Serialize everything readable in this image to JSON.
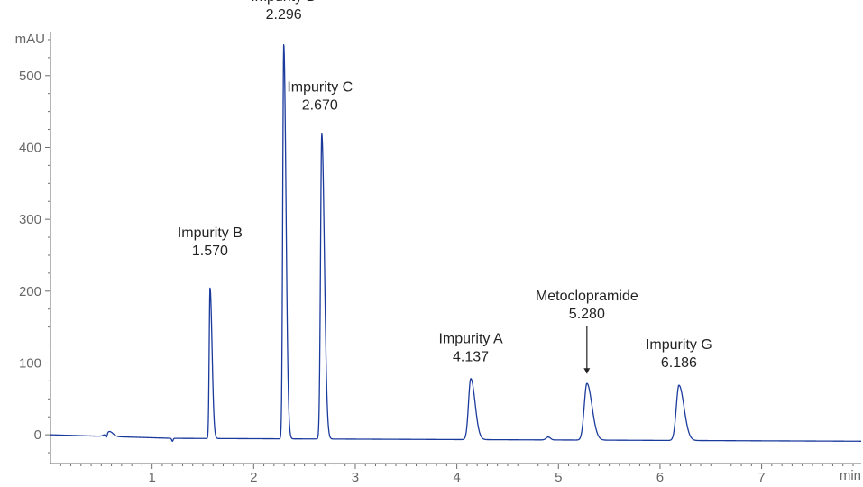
{
  "chart_data": {
    "type": "line",
    "title": "",
    "xlabel": "min",
    "ylabel": "mAU",
    "xlim": [
      0,
      7.98
    ],
    "ylim": [
      -40,
      560
    ],
    "x_ticks": [
      "1",
      "2",
      "3",
      "4",
      "5",
      "6",
      "7"
    ],
    "y_ticks": [
      "0",
      "100",
      "200",
      "300",
      "400",
      "500"
    ],
    "grid": false,
    "legend": "none",
    "line_color": "#1a3a9c",
    "series": [
      {
        "peaks": [
          {
            "rt": 1.57,
            "height": 210
          },
          {
            "rt": 2.296,
            "height": 549
          },
          {
            "rt": 2.67,
            "height": 425
          },
          {
            "rt": 4.137,
            "height": 85
          },
          {
            "rt": 5.28,
            "height": 79
          },
          {
            "rt": 6.186,
            "height": 77
          }
        ],
        "baseline_drift": [
          [
            0,
            0
          ],
          [
            1.2,
            -5
          ],
          [
            8,
            -9
          ]
        ]
      }
    ],
    "annotations": [
      {
        "name": "Impurity B",
        "rt_text": "1.570",
        "rt": 1.57
      },
      {
        "name": "Impurity D",
        "rt_text": "2.296",
        "rt": 2.296
      },
      {
        "name": "Impurity C",
        "rt_text": "2.670",
        "rt": 2.67
      },
      {
        "name": "Impurity A",
        "rt_text": "4.137",
        "rt": 4.137
      },
      {
        "name": "Metoclopramide",
        "rt_text": "5.280",
        "rt": 5.28,
        "arrow": true
      },
      {
        "name": "Impurity G",
        "rt_text": "6.186",
        "rt": 6.186
      }
    ]
  }
}
